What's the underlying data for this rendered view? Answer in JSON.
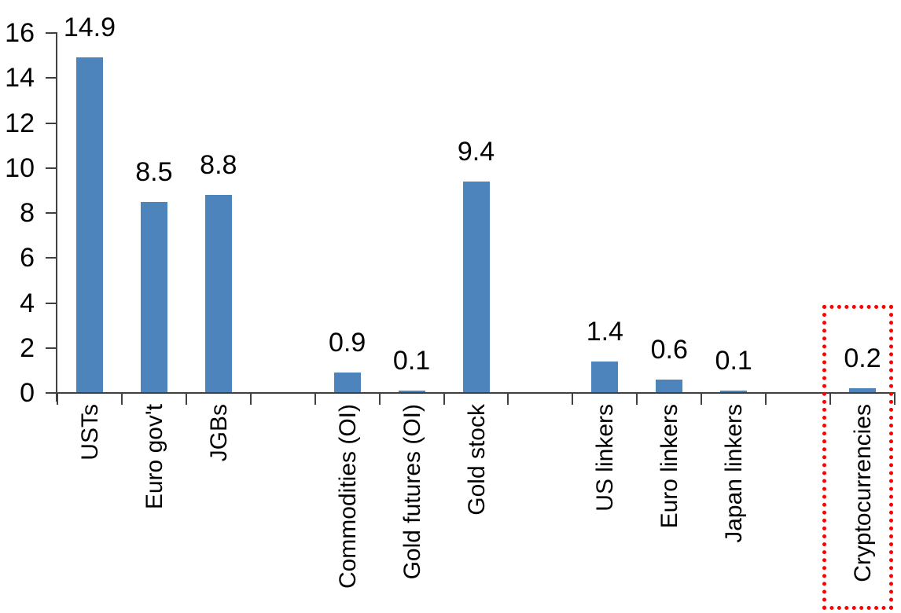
{
  "chart_data": {
    "type": "bar",
    "title": "",
    "xlabel": "",
    "ylabel": "",
    "categories": [
      "USTs",
      "Euro gov't",
      "JGBs",
      "Commodities (OI)",
      "Gold futures (OI)",
      "Gold stock",
      "US linkers",
      "Euro linkers",
      "Japan linkers",
      "Cryptocurrencies"
    ],
    "values": [
      14.9,
      8.5,
      8.8,
      0.9,
      0.1,
      9.4,
      1.4,
      0.6,
      0.1,
      0.2
    ],
    "labels": [
      "14.9",
      "8.5",
      "8.8",
      "0.9",
      "0.1",
      "9.4",
      "1.4",
      "0.6",
      "0.1",
      "0.2"
    ],
    "slots": [
      0,
      1,
      2,
      4,
      5,
      6,
      8,
      9,
      10,
      12
    ],
    "total_slots": 13,
    "ylim": [
      0,
      16
    ],
    "ytick_step": 2,
    "yticks": [
      "0",
      "2",
      "4",
      "6",
      "8",
      "10",
      "12",
      "14",
      "16"
    ],
    "grid": false,
    "legend": false,
    "bar_color": "#4E84BC",
    "axis_color": "#404040",
    "text_color": "#000000",
    "highlight": {
      "category": "Cryptocurrencies",
      "box_color": "#FF0000",
      "box_style": "dotted"
    }
  }
}
